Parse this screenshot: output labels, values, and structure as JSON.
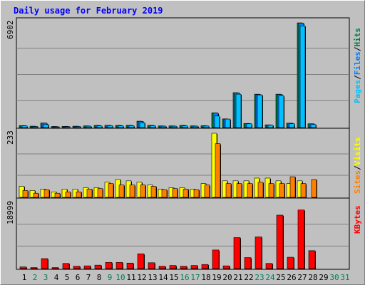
{
  "chart_data": {
    "type": "bar",
    "title": "Daily usage for February 2019",
    "days": [
      "1",
      "2",
      "3",
      "4",
      "5",
      "6",
      "7",
      "8",
      "9",
      "10",
      "11",
      "12",
      "13",
      "14",
      "15",
      "16",
      "17",
      "18",
      "19",
      "20",
      "21",
      "22",
      "23",
      "24",
      "25",
      "26",
      "27",
      "28",
      "29",
      "30",
      "31"
    ],
    "weekend_days": [
      "2",
      "3",
      "9",
      "10",
      "16",
      "17",
      "23",
      "24",
      "30",
      "31"
    ],
    "panels": [
      {
        "id": "hits",
        "ymax_label": "6902",
        "ymax": 6902,
        "legend": [
          "Pages",
          "Files",
          "Hits"
        ],
        "series": [
          {
            "name": "Hits",
            "color": "#008040",
            "values": [
              130,
              90,
              300,
              70,
              80,
              90,
              110,
              140,
              150,
              140,
              150,
              420,
              150,
              110,
              110,
              140,
              110,
              120,
              970,
              570,
              2300,
              270,
              2200,
              180,
              2200,
              290,
              6900,
              250,
              0,
              0,
              0
            ]
          },
          {
            "name": "Files",
            "color": "#0080ff",
            "values": [
              125,
              85,
              290,
              65,
              75,
              85,
              105,
              135,
              145,
              135,
              145,
              410,
              145,
              105,
              105,
              135,
              105,
              115,
              960,
              560,
              2280,
              265,
              2180,
              175,
              2180,
              285,
              6880,
              245,
              0,
              0,
              0
            ]
          },
          {
            "name": "Pages",
            "color": "#00c0ff",
            "values": [
              110,
              70,
              200,
              50,
              60,
              70,
              90,
              110,
              120,
              110,
              120,
              320,
              120,
              90,
              90,
              110,
              90,
              100,
              760,
              560,
              2200,
              250,
              2150,
              160,
              2100,
              250,
              6700,
              200,
              0,
              0,
              0
            ]
          }
        ]
      },
      {
        "id": "visits",
        "ymax_label": "233",
        "ymax": 233,
        "legend": [
          "Sites",
          "Visits"
        ],
        "series": [
          {
            "name": "Visits",
            "color": "#ffff00",
            "values": [
              40,
              25,
              30,
              20,
              30,
              30,
              35,
              35,
              55,
              65,
              60,
              55,
              45,
              30,
              35,
              35,
              30,
              50,
              233,
              60,
              60,
              60,
              70,
              70,
              60,
              50,
              60,
              0,
              0,
              0,
              0
            ]
          },
          {
            "name": "Sites",
            "color": "#ff8000",
            "values": [
              25,
              15,
              28,
              15,
              20,
              20,
              30,
              32,
              50,
              45,
              45,
              45,
              40,
              28,
              32,
              30,
              28,
              45,
              195,
              50,
              50,
              50,
              55,
              50,
              50,
              75,
              50,
              65,
              0,
              0,
              0
            ]
          }
        ]
      },
      {
        "id": "kbytes",
        "ymax_label": "18999",
        "ymax": 18999,
        "legend": [
          "KBytes"
        ],
        "series": [
          {
            "name": "KBytes",
            "color": "#ff0000",
            "values": [
              500,
              300,
              2900,
              300,
              1500,
              700,
              800,
              1000,
              1800,
              1800,
              1600,
              4300,
              1700,
              700,
              900,
              700,
              900,
              1200,
              5400,
              800,
              9000,
              3200,
              9200,
              1500,
              15500,
              3300,
              17000,
              5200,
              0,
              0,
              0
            ]
          }
        ]
      }
    ]
  },
  "colors": {
    "background": "#c0c0c0",
    "title": "#0000ff",
    "weekday_label": "#000000",
    "weekend_label": "#00805c",
    "kbytes_legend": "#ff0000"
  }
}
